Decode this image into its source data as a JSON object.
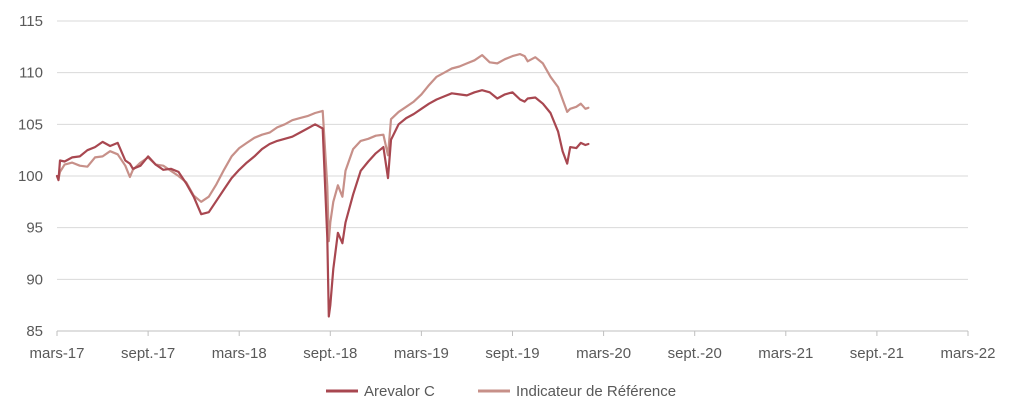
{
  "chart_data": {
    "type": "line",
    "title": "",
    "xlabel": "",
    "ylabel": "",
    "ylim": [
      85,
      115
    ],
    "yticks": [
      85,
      90,
      95,
      100,
      105,
      110,
      115
    ],
    "x_ticks": [
      "mars-17",
      "sept.-17",
      "mars-18",
      "sept.-18",
      "mars-19",
      "sept.-19",
      "mars-20",
      "sept.-20",
      "mars-21",
      "sept.-21",
      "mars-22"
    ],
    "grid": "horizontal",
    "legend_position": "bottom",
    "series": [
      {
        "name": "Arevalor C",
        "color": "#A84750",
        "values": [
          [
            0,
            100.0
          ],
          [
            0.1,
            99.6
          ],
          [
            0.2,
            101.5
          ],
          [
            0.5,
            101.4
          ],
          [
            1.0,
            101.8
          ],
          [
            1.5,
            101.9
          ],
          [
            2.0,
            102.5
          ],
          [
            2.5,
            102.8
          ],
          [
            3.0,
            103.3
          ],
          [
            3.5,
            102.9
          ],
          [
            4.0,
            103.2
          ],
          [
            4.5,
            101.5
          ],
          [
            4.8,
            101.2
          ],
          [
            5.0,
            100.7
          ],
          [
            5.5,
            101.0
          ],
          [
            6.0,
            101.9
          ],
          [
            6.5,
            101.1
          ],
          [
            7.0,
            100.6
          ],
          [
            7.5,
            100.7
          ],
          [
            8.0,
            100.4
          ],
          [
            8.5,
            99.3
          ],
          [
            9.0,
            98.0
          ],
          [
            9.5,
            96.3
          ],
          [
            10.0,
            96.5
          ],
          [
            10.5,
            97.6
          ],
          [
            11.0,
            98.7
          ],
          [
            11.5,
            99.8
          ],
          [
            12.0,
            100.6
          ],
          [
            12.5,
            101.3
          ],
          [
            13.0,
            101.9
          ],
          [
            13.5,
            102.6
          ],
          [
            14.0,
            103.1
          ],
          [
            14.5,
            103.4
          ],
          [
            15.0,
            103.6
          ],
          [
            15.5,
            103.8
          ],
          [
            16.0,
            104.2
          ],
          [
            16.5,
            104.6
          ],
          [
            17.0,
            105.0
          ],
          [
            17.5,
            104.6
          ],
          [
            17.8,
            94.0
          ],
          [
            17.9,
            86.4
          ],
          [
            18.0,
            87.5
          ],
          [
            18.2,
            91.0
          ],
          [
            18.5,
            94.5
          ],
          [
            18.8,
            93.5
          ],
          [
            19.0,
            95.5
          ],
          [
            19.5,
            98.2
          ],
          [
            20.0,
            100.5
          ],
          [
            20.5,
            101.4
          ],
          [
            21.0,
            102.2
          ],
          [
            21.5,
            102.8
          ],
          [
            21.8,
            99.8
          ],
          [
            22.0,
            103.5
          ],
          [
            22.5,
            105.0
          ],
          [
            23.0,
            105.6
          ],
          [
            23.5,
            106.0
          ],
          [
            24.0,
            106.5
          ],
          [
            24.5,
            107.0
          ],
          [
            25.0,
            107.4
          ],
          [
            25.5,
            107.7
          ],
          [
            26.0,
            108.0
          ],
          [
            26.5,
            107.9
          ],
          [
            27.0,
            107.8
          ],
          [
            27.5,
            108.1
          ],
          [
            28.0,
            108.3
          ],
          [
            28.5,
            108.1
          ],
          [
            29.0,
            107.5
          ],
          [
            29.5,
            107.9
          ],
          [
            30.0,
            108.1
          ],
          [
            30.5,
            107.4
          ],
          [
            30.8,
            107.2
          ],
          [
            31.0,
            107.5
          ],
          [
            31.5,
            107.6
          ],
          [
            32.0,
            107.0
          ],
          [
            32.5,
            106.1
          ],
          [
            33.0,
            104.3
          ],
          [
            33.3,
            102.4
          ],
          [
            33.6,
            101.2
          ],
          [
            33.8,
            102.8
          ],
          [
            34.2,
            102.7
          ],
          [
            34.5,
            103.2
          ],
          [
            34.8,
            103.0
          ],
          [
            35.0,
            103.1
          ]
        ]
      },
      {
        "name": "Indicateur de Référence",
        "color": "#C79089",
        "values": [
          [
            0,
            100.0
          ],
          [
            0.1,
            99.7
          ],
          [
            0.2,
            100.4
          ],
          [
            0.5,
            101.1
          ],
          [
            1.0,
            101.3
          ],
          [
            1.5,
            101.0
          ],
          [
            2.0,
            100.9
          ],
          [
            2.5,
            101.8
          ],
          [
            3.0,
            101.9
          ],
          [
            3.5,
            102.4
          ],
          [
            4.0,
            102.1
          ],
          [
            4.5,
            101.0
          ],
          [
            4.8,
            99.9
          ],
          [
            5.0,
            100.6
          ],
          [
            5.5,
            101.3
          ],
          [
            6.0,
            101.8
          ],
          [
            6.5,
            101.1
          ],
          [
            7.0,
            101.0
          ],
          [
            7.5,
            100.5
          ],
          [
            8.0,
            100.0
          ],
          [
            8.5,
            99.4
          ],
          [
            9.0,
            98.1
          ],
          [
            9.5,
            97.5
          ],
          [
            10.0,
            98.0
          ],
          [
            10.5,
            99.2
          ],
          [
            11.0,
            100.6
          ],
          [
            11.5,
            101.9
          ],
          [
            12.0,
            102.7
          ],
          [
            12.5,
            103.2
          ],
          [
            13.0,
            103.7
          ],
          [
            13.5,
            104.0
          ],
          [
            14.0,
            104.2
          ],
          [
            14.5,
            104.7
          ],
          [
            15.0,
            105.0
          ],
          [
            15.5,
            105.4
          ],
          [
            16.0,
            105.6
          ],
          [
            16.5,
            105.8
          ],
          [
            17.0,
            106.1
          ],
          [
            17.5,
            106.3
          ],
          [
            17.8,
            99.0
          ],
          [
            17.9,
            93.7
          ],
          [
            18.0,
            95.5
          ],
          [
            18.2,
            97.5
          ],
          [
            18.5,
            99.1
          ],
          [
            18.8,
            98.0
          ],
          [
            19.0,
            100.5
          ],
          [
            19.5,
            102.6
          ],
          [
            20.0,
            103.4
          ],
          [
            20.5,
            103.6
          ],
          [
            21.0,
            103.9
          ],
          [
            21.5,
            104.0
          ],
          [
            21.8,
            102.0
          ],
          [
            22.0,
            105.5
          ],
          [
            22.5,
            106.2
          ],
          [
            23.0,
            106.7
          ],
          [
            23.5,
            107.2
          ],
          [
            24.0,
            107.9
          ],
          [
            24.5,
            108.8
          ],
          [
            25.0,
            109.6
          ],
          [
            25.5,
            110.0
          ],
          [
            26.0,
            110.4
          ],
          [
            26.5,
            110.6
          ],
          [
            27.0,
            110.9
          ],
          [
            27.5,
            111.2
          ],
          [
            28.0,
            111.7
          ],
          [
            28.5,
            111.0
          ],
          [
            29.0,
            110.9
          ],
          [
            29.5,
            111.3
          ],
          [
            30.0,
            111.6
          ],
          [
            30.5,
            111.8
          ],
          [
            30.8,
            111.6
          ],
          [
            31.0,
            111.1
          ],
          [
            31.5,
            111.5
          ],
          [
            32.0,
            110.9
          ],
          [
            32.5,
            109.6
          ],
          [
            33.0,
            108.6
          ],
          [
            33.3,
            107.4
          ],
          [
            33.6,
            106.2
          ],
          [
            33.8,
            106.5
          ],
          [
            34.2,
            106.7
          ],
          [
            34.5,
            107.0
          ],
          [
            34.8,
            106.5
          ],
          [
            35.0,
            106.6
          ]
        ]
      }
    ]
  }
}
